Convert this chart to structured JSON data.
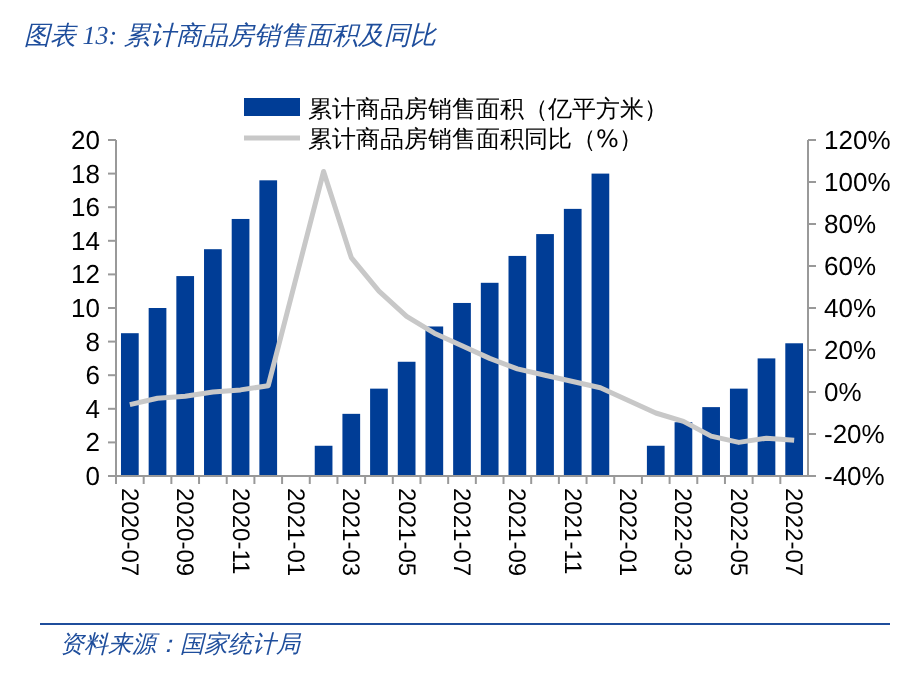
{
  "chart_data": {
    "type": "bar",
    "title": "图表 13: 累计商品房销售面积及同比",
    "categories": [
      "2020-07",
      null,
      "2020-09",
      null,
      "2020-11",
      null,
      "2021-01",
      null,
      "2021-03",
      null,
      "2021-05",
      null,
      "2021-07",
      null,
      "2021-09",
      null,
      "2021-11",
      null,
      "2022-01",
      null,
      "2022-03",
      null,
      "2022-05",
      null,
      "2022-07"
    ],
    "series": [
      {
        "name": "累计商品房销售面积（亿平方米）",
        "color": "#003d96",
        "values": [
          8.5,
          10.0,
          11.9,
          13.5,
          15.3,
          17.6,
          null,
          1.8,
          3.7,
          5.2,
          6.8,
          8.9,
          10.3,
          11.5,
          13.1,
          14.4,
          15.9,
          18.0,
          null,
          1.8,
          3.2,
          4.1,
          5.2,
          7.0,
          7.9
        ]
      },
      {
        "name": "累计商品房销售面积同比（%）",
        "type": "line",
        "axis": "y2",
        "color": "#c8c8c8",
        "values": [
          -6,
          -3,
          -2,
          0,
          1,
          3,
          null,
          105,
          64,
          48,
          36,
          28,
          22,
          16,
          11,
          8,
          5,
          2,
          null,
          -10,
          -14,
          -21,
          -24,
          -22,
          -23
        ]
      }
    ],
    "ylim": [
      0,
      20
    ],
    "yticks": [
      0,
      2,
      4,
      6,
      8,
      10,
      12,
      14,
      16,
      18,
      20
    ],
    "y2lim": [
      -40,
      120
    ],
    "y2ticks": [
      {
        "value": -40,
        "label": "-40%"
      },
      {
        "value": -20,
        "label": "-20%"
      },
      {
        "value": 0,
        "label": "0%"
      },
      {
        "value": 20,
        "label": "20%"
      },
      {
        "value": 40,
        "label": "40%"
      },
      {
        "value": 60,
        "label": "60%"
      },
      {
        "value": 80,
        "label": "80%"
      },
      {
        "value": 100,
        "label": "100%"
      },
      {
        "value": 120,
        "label": "120%"
      }
    ],
    "legend": "top",
    "grid": false,
    "annotations": [
      "资料来源：国家统计局"
    ]
  }
}
